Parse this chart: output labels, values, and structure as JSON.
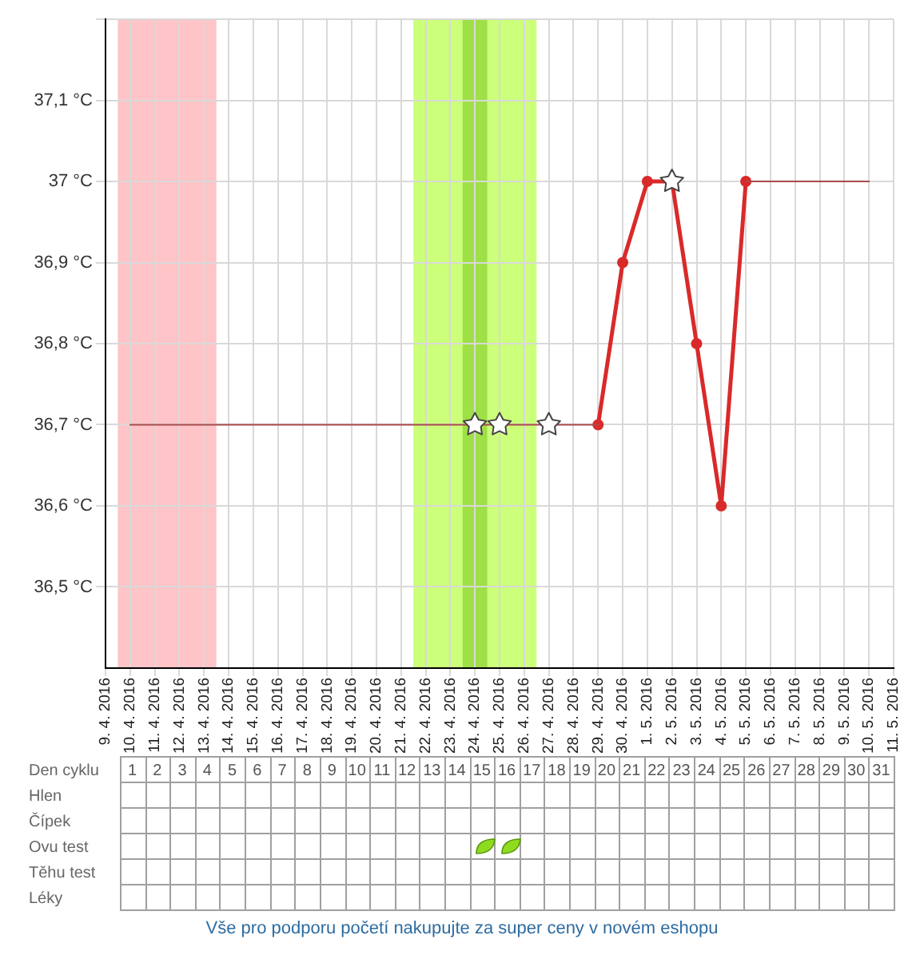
{
  "chart_data": {
    "type": "line",
    "xlim": [
      "2016-04-09",
      "2016-05-11"
    ],
    "xticks": [
      {
        "value": "2016-04-09",
        "label": "9. 4. 2016"
      },
      {
        "value": "2016-04-10",
        "label": "10. 4. 2016"
      },
      {
        "value": "2016-04-11",
        "label": "11. 4. 2016"
      },
      {
        "value": "2016-04-12",
        "label": "12. 4. 2016"
      },
      {
        "value": "2016-04-13",
        "label": "13. 4. 2016"
      },
      {
        "value": "2016-04-14",
        "label": "14. 4. 2016"
      },
      {
        "value": "2016-04-15",
        "label": "15. 4. 2016"
      },
      {
        "value": "2016-04-16",
        "label": "16. 4. 2016"
      },
      {
        "value": "2016-04-17",
        "label": "17. 4. 2016"
      },
      {
        "value": "2016-04-18",
        "label": "18. 4. 2016"
      },
      {
        "value": "2016-04-19",
        "label": "19. 4. 2016"
      },
      {
        "value": "2016-04-20",
        "label": "20. 4. 2016"
      },
      {
        "value": "2016-04-21",
        "label": "21. 4. 2016"
      },
      {
        "value": "2016-04-22",
        "label": "22. 4. 2016"
      },
      {
        "value": "2016-04-23",
        "label": "23. 4. 2016"
      },
      {
        "value": "2016-04-24",
        "label": "24. 4. 2016"
      },
      {
        "value": "2016-04-25",
        "label": "25. 4. 2016"
      },
      {
        "value": "2016-04-26",
        "label": "26. 4. 2016"
      },
      {
        "value": "2016-04-27",
        "label": "27. 4. 2016"
      },
      {
        "value": "2016-04-28",
        "label": "28. 4. 2016"
      },
      {
        "value": "2016-04-29",
        "label": "29. 4. 2016"
      },
      {
        "value": "2016-04-30",
        "label": "30. 4. 2016"
      },
      {
        "value": "2016-05-01",
        "label": "1. 5. 2016"
      },
      {
        "value": "2016-05-02",
        "label": "2. 5. 2016"
      },
      {
        "value": "2016-05-03",
        "label": "3. 5. 2016"
      },
      {
        "value": "2016-05-04",
        "label": "4. 5. 2016"
      },
      {
        "value": "2016-05-05",
        "label": "5. 5. 2016"
      },
      {
        "value": "2016-05-06",
        "label": "6. 5. 2016"
      },
      {
        "value": "2016-05-07",
        "label": "7. 5. 2016"
      },
      {
        "value": "2016-05-08",
        "label": "8. 5. 2016"
      },
      {
        "value": "2016-05-09",
        "label": "9. 5. 2016"
      },
      {
        "value": "2016-05-10",
        "label": "10. 5. 2016"
      },
      {
        "value": "2016-05-11",
        "label": "11. 5. 2016"
      }
    ],
    "ylim": [
      36.4,
      37.2
    ],
    "yticks": [
      {
        "value": 36.5,
        "label": "36,5 °C"
      },
      {
        "value": 36.6,
        "label": "36,6 °C"
      },
      {
        "value": 36.7,
        "label": "36,7 °C"
      },
      {
        "value": 36.8,
        "label": "36,8 °C"
      },
      {
        "value": 36.9,
        "label": "36,9 °C"
      },
      {
        "value": 37,
        "label": "37 °C"
      },
      {
        "value": 37.1,
        "label": "37,1 °C"
      },
      {
        "value": 37.2,
        "label": null
      }
    ],
    "x2label": "Den cyklu",
    "x2lim": [
      0.5,
      31.5
    ],
    "x2ticks": [
      1,
      2,
      3,
      4,
      5,
      6,
      7,
      8,
      9,
      10,
      11,
      12,
      13,
      14,
      15,
      16,
      17,
      18,
      19,
      20,
      21,
      22,
      23,
      24,
      25,
      26,
      27,
      28,
      29,
      30,
      31
    ],
    "grid": true,
    "series": [
      {
        "type": "line",
        "color": "#a94a4a",
        "marker": "none",
        "x": [
          "2016-04-10",
          "2016-04-29"
        ],
        "values": [
          36.7,
          36.7
        ]
      },
      {
        "type": "line",
        "color": "#a94a4a",
        "marker": "none",
        "x": [
          "2016-05-05",
          "2016-05-10"
        ],
        "values": [
          37,
          37
        ]
      },
      {
        "type": "line",
        "color": "#d92a2a",
        "marker": "circle",
        "x": [
          "2016-04-29",
          "2016-04-30",
          "2016-05-01",
          "2016-05-02",
          "2016-05-03",
          "2016-05-04",
          "2016-05-05"
        ],
        "values": [
          36.7,
          36.9,
          37,
          37,
          36.8,
          36.6,
          37
        ]
      },
      {
        "type": "scatter",
        "color": "#ffffff",
        "marker": "star",
        "x": [
          "2016-04-24",
          "2016-04-25",
          "2016-04-27",
          "2016-05-02"
        ],
        "values": [
          36.7,
          36.7,
          36.7,
          37
        ]
      }
    ],
    "bands": [
      {
        "axis": "x",
        "from": "2016-04-09T12:00",
        "to": "2016-04-13T12:00",
        "color": "#ffc4c7"
      },
      {
        "axis": "x",
        "from": "2016-04-21T12:00",
        "to": "2016-04-26T12:00",
        "color": "#ccff7a"
      },
      {
        "axis": "x",
        "from": "2016-04-23T12:00",
        "to": "2016-04-24T12:00",
        "color": "#9ee046"
      }
    ],
    "annotations": [
      "Hlen",
      "Čípek",
      "Ovu test",
      "Těhu test",
      "Léky",
      "Vše pro podporu početí nakupujte za super ceny v novém eshopu"
    ]
  }
}
